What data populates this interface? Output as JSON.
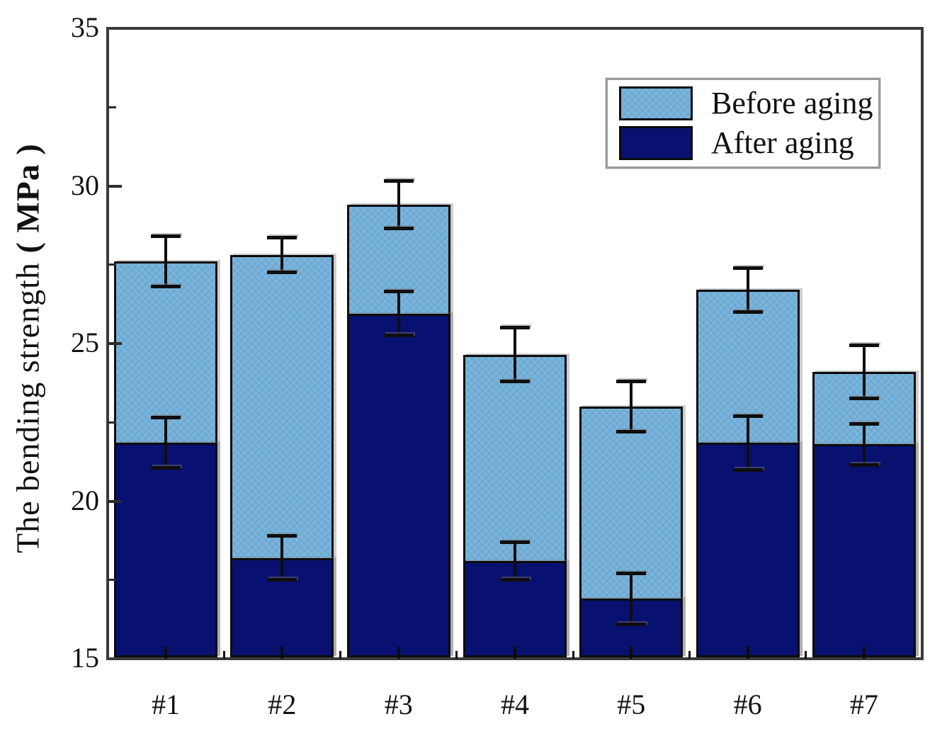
{
  "figure": {
    "background": "#ffffff",
    "frame_color": "#3b3b3b",
    "error_bar_color": "#0e0e0e"
  },
  "chart_data": {
    "type": "bar",
    "bar_mode": "overlay",
    "title": "",
    "xlabel": "",
    "ylabel": "The bending strength （MPa）",
    "ylabel_text": "The bending strength ",
    "ylabel_units": "（MPa）",
    "categories": [
      "#1",
      "#2",
      "#3",
      "#4",
      "#5",
      "#6",
      "#7"
    ],
    "series": [
      {
        "name": "Before aging",
        "color": "#79b5dc",
        "values": [
          27.6,
          27.8,
          29.4,
          24.65,
          23.0,
          26.7,
          24.1
        ],
        "errors": [
          0.8,
          0.55,
          0.75,
          0.85,
          0.8,
          0.7,
          0.85
        ]
      },
      {
        "name": "After aging",
        "color": "#081170",
        "values": [
          21.85,
          18.2,
          25.95,
          18.1,
          16.9,
          21.85,
          21.8
        ],
        "errors": [
          0.8,
          0.7,
          0.7,
          0.6,
          0.8,
          0.85,
          0.65
        ]
      }
    ],
    "ylim": [
      15,
      35
    ],
    "ytick_values": [
      15,
      20,
      25,
      30,
      35
    ],
    "ytick_labels": [
      "15",
      "20",
      "25",
      "30",
      "35"
    ],
    "ytick_minor_values": [
      17.5,
      22.5,
      27.5,
      32.5
    ],
    "grid": false,
    "legend": {
      "position": "top-right",
      "entries": [
        "Before aging",
        "After aging"
      ]
    }
  }
}
